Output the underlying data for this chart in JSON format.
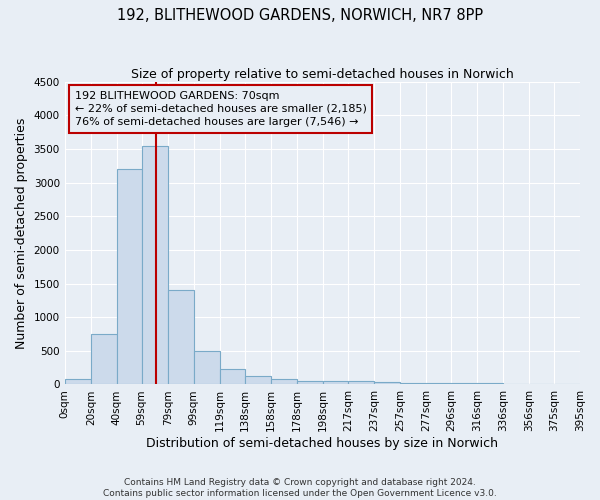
{
  "title": "192, BLITHEWOOD GARDENS, NORWICH, NR7 8PP",
  "subtitle": "Size of property relative to semi-detached houses in Norwich",
  "xlabel": "Distribution of semi-detached houses by size in Norwich",
  "ylabel": "Number of semi-detached properties",
  "bin_edges": [
    0,
    20,
    40,
    59,
    79,
    99,
    119,
    138,
    158,
    178,
    198,
    217,
    237,
    257,
    277,
    296,
    316,
    336,
    356,
    375,
    395
  ],
  "bar_heights": [
    75,
    750,
    3200,
    3550,
    1400,
    500,
    230,
    120,
    75,
    55,
    55,
    50,
    30,
    25,
    20,
    20,
    15,
    10,
    8,
    5
  ],
  "bar_facecolor": "#ccdaeb",
  "bar_edgecolor": "#7aaac8",
  "bar_linewidth": 0.8,
  "ylim": [
    0,
    4500
  ],
  "yticks": [
    0,
    500,
    1000,
    1500,
    2000,
    2500,
    3000,
    3500,
    4000,
    4500
  ],
  "red_line_x": 70,
  "red_line_color": "#bb0000",
  "annotation_text": "192 BLITHEWOOD GARDENS: 70sqm\n← 22% of semi-detached houses are smaller (2,185)\n76% of semi-detached houses are larger (7,546) →",
  "annotation_box_color": "#bb0000",
  "background_color": "#e8eef5",
  "grid_color": "#ffffff",
  "title_fontsize": 10.5,
  "subtitle_fontsize": 9,
  "axis_label_fontsize": 9,
  "tick_fontsize": 7.5,
  "annotation_fontsize": 8,
  "footer_line1": "Contains HM Land Registry data © Crown copyright and database right 2024.",
  "footer_line2": "Contains public sector information licensed under the Open Government Licence v3.0."
}
